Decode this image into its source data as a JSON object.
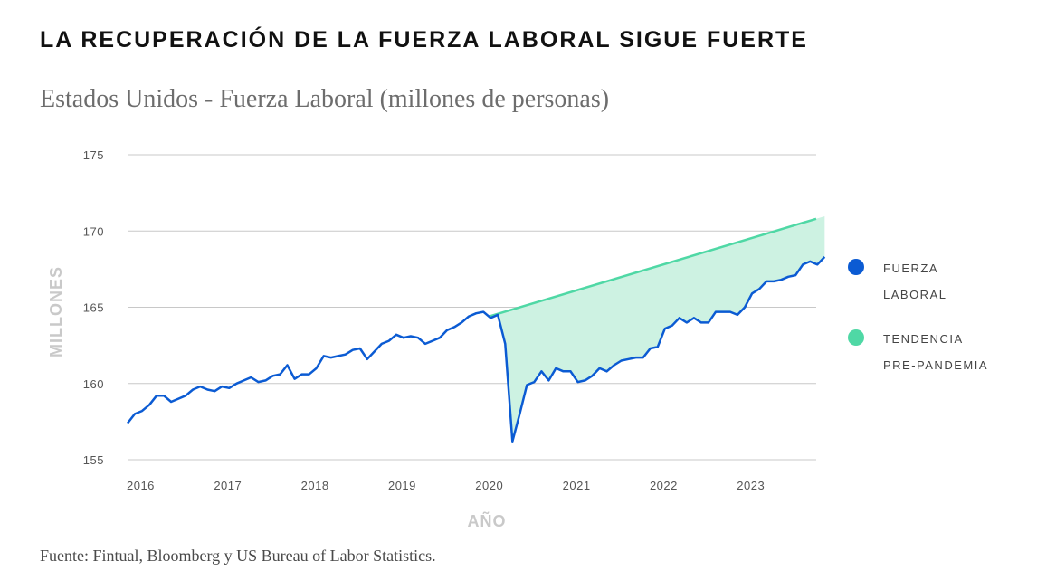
{
  "title": "LA RECUPERACIÓN DE LA FUERZA LABORAL SIGUE FUERTE",
  "subtitle": "Estados Unidos - Fuerza Laboral (millones de personas)",
  "source": "Fuente: Fintual, Bloomberg y US Bureau of Labor Statistics.",
  "colors": {
    "labor": "#0b5bd3",
    "trend": "#4fd8a5",
    "fill": "#cdf2e2",
    "grid": "#c8c8c8"
  },
  "chart_data": {
    "type": "line",
    "ylabel": "MILLONES",
    "xlabel": "AÑO",
    "ylim": [
      155,
      175
    ],
    "yticks": [
      155,
      160,
      165,
      170,
      175
    ],
    "xlim": [
      2015.85,
      2023.75
    ],
    "xticks": [
      {
        "label": "2016",
        "x": 2016.0
      },
      {
        "label": "2017",
        "x": 2017.0
      },
      {
        "label": "2018",
        "x": 2018.0
      },
      {
        "label": "2019",
        "x": 2019.0
      },
      {
        "label": "2020",
        "x": 2020.0
      },
      {
        "label": "2021",
        "x": 2021.0
      },
      {
        "label": "2022",
        "x": 2022.0
      },
      {
        "label": "2023",
        "x": 2023.0
      }
    ],
    "series": [
      {
        "name": "FUERZA LABORAL",
        "x_start": 2015.85,
        "x_step": 0.0833,
        "values": [
          157.4,
          158.0,
          158.2,
          158.6,
          159.2,
          159.2,
          158.8,
          159.0,
          159.2,
          159.6,
          159.8,
          159.6,
          159.5,
          159.8,
          159.7,
          160.0,
          160.2,
          160.4,
          160.1,
          160.2,
          160.5,
          160.6,
          161.2,
          160.3,
          160.6,
          160.6,
          161.0,
          161.8,
          161.7,
          161.8,
          161.9,
          162.2,
          162.3,
          161.6,
          162.1,
          162.6,
          162.8,
          163.2,
          163.0,
          163.1,
          163.0,
          162.6,
          162.8,
          163.0,
          163.5,
          163.7,
          164.0,
          164.4,
          164.6,
          164.7,
          164.3,
          164.5,
          162.6,
          156.2,
          158.0,
          159.9,
          160.1,
          160.8,
          160.2,
          161.0,
          160.8,
          160.8,
          160.1,
          160.2,
          160.5,
          161.0,
          160.8,
          161.2,
          161.5,
          161.6,
          161.7,
          161.7,
          162.3,
          162.4,
          163.6,
          163.8,
          164.3,
          164.0,
          164.3,
          164.0,
          164.0,
          164.7,
          164.7,
          164.7,
          164.5,
          165.0,
          165.9,
          166.2,
          166.7,
          166.7,
          166.8,
          167.0,
          167.1,
          167.8,
          168.0,
          167.8,
          168.3
        ]
      },
      {
        "name": "TENDENCIA PRE-PANDEMIA",
        "x": [
          2020.0,
          2023.75
        ],
        "values": [
          164.4,
          170.8
        ]
      }
    ],
    "legend": [
      {
        "line1": "FUERZA",
        "line2": "LABORAL"
      },
      {
        "line1": "TENDENCIA",
        "line2": "PRE-PANDEMIA"
      }
    ]
  }
}
